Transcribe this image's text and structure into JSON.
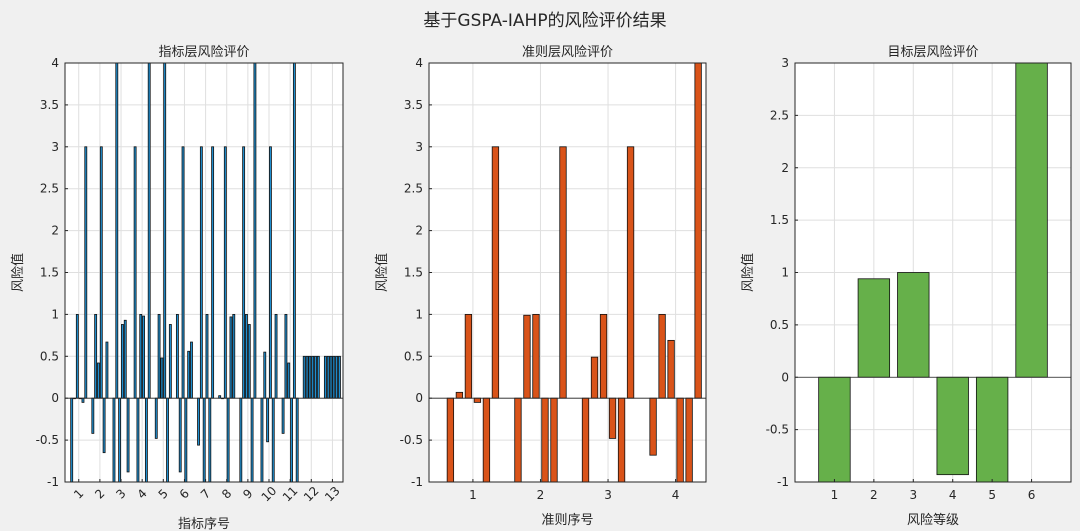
{
  "figure": {
    "title": "基于GSPA-IAHP的风险评价结果"
  },
  "colors": {
    "background": "#f0f0f0",
    "axes_bg": "#ffffff",
    "grid": "#dfdfdf",
    "axis": "#262626",
    "indicator_bar": "#1f8fd0",
    "criteria_bar": "#d95319",
    "target_bar": "#66b04a"
  },
  "chart_data": [
    {
      "type": "bar",
      "title": "指标层风险评价",
      "xlabel": "指标序号",
      "ylabel": "风险值",
      "ylim": [
        -1,
        4
      ],
      "yticks": [
        -1,
        -0.5,
        0,
        0.5,
        1,
        1.5,
        2,
        2.5,
        3,
        3.5,
        4
      ],
      "xlim": [
        0.35,
        13.5
      ],
      "categories": [
        "1",
        "2",
        "3",
        "4",
        "5",
        "6",
        "7",
        "8",
        "9",
        "10",
        "11",
        "12",
        "13"
      ],
      "tick_rotation": -45,
      "grid": true,
      "series_count": 6,
      "values": [
        [
          -1,
          0,
          1,
          0,
          -0.05,
          3
        ],
        [
          -0.42,
          1,
          0.42,
          3,
          -0.65,
          0.67
        ],
        [
          -1,
          4,
          -1,
          0.88,
          0.93,
          -0.88
        ],
        [
          3,
          -1,
          1,
          0.98,
          -1,
          4
        ],
        [
          -0.48,
          1,
          0.48,
          4,
          -1,
          0.88
        ],
        [
          1,
          -0.88,
          3,
          -1,
          0.56,
          0.67
        ],
        [
          -0.56,
          3,
          -1,
          1,
          -1,
          3
        ],
        [
          0.03,
          0,
          3,
          -1,
          0.97,
          1
        ],
        [
          -1,
          3,
          1,
          0.88,
          -1,
          4
        ],
        [
          -1,
          0.55,
          -0.52,
          3,
          -1,
          1
        ],
        [
          -0.42,
          1,
          0.42,
          -1,
          4,
          -1
        ],
        [
          0.5,
          0.5,
          0.5,
          0.5,
          0.5,
          0.5
        ],
        [
          0.5,
          0.5,
          0.5,
          0.5,
          0.5,
          0.5
        ]
      ]
    },
    {
      "type": "bar",
      "title": "准则层风险评价",
      "xlabel": "准则序号",
      "ylabel": "风险值",
      "ylim": [
        -1,
        4
      ],
      "yticks": [
        -1,
        -0.5,
        0,
        0.5,
        1,
        1.5,
        2,
        2.5,
        3,
        3.5,
        4
      ],
      "xlim": [
        0.35,
        4.45
      ],
      "categories": [
        "1",
        "2",
        "3",
        "4"
      ],
      "tick_rotation": 0,
      "grid": true,
      "series_count": 6,
      "values": [
        [
          -1,
          0.07,
          1,
          -0.05,
          -1,
          3
        ],
        [
          -1,
          0.99,
          1,
          -1,
          -1,
          3
        ],
        [
          -1,
          0.49,
          1,
          -0.48,
          -1,
          3
        ],
        [
          -0.68,
          1,
          0.69,
          -1,
          -1,
          4
        ]
      ]
    },
    {
      "type": "bar",
      "title": "目标层风险评价",
      "xlabel": "风险等级",
      "ylabel": "风险值",
      "ylim": [
        -1,
        3
      ],
      "yticks": [
        -1,
        -0.5,
        0,
        0.5,
        1,
        1.5,
        2,
        2.5,
        3
      ],
      "xlim": [
        0,
        7
      ],
      "categories": [
        "1",
        "2",
        "3",
        "4",
        "5",
        "6"
      ],
      "tick_rotation": 0,
      "grid": true,
      "values": [
        -1,
        0.94,
        1,
        -0.93,
        -1,
        3
      ]
    }
  ]
}
